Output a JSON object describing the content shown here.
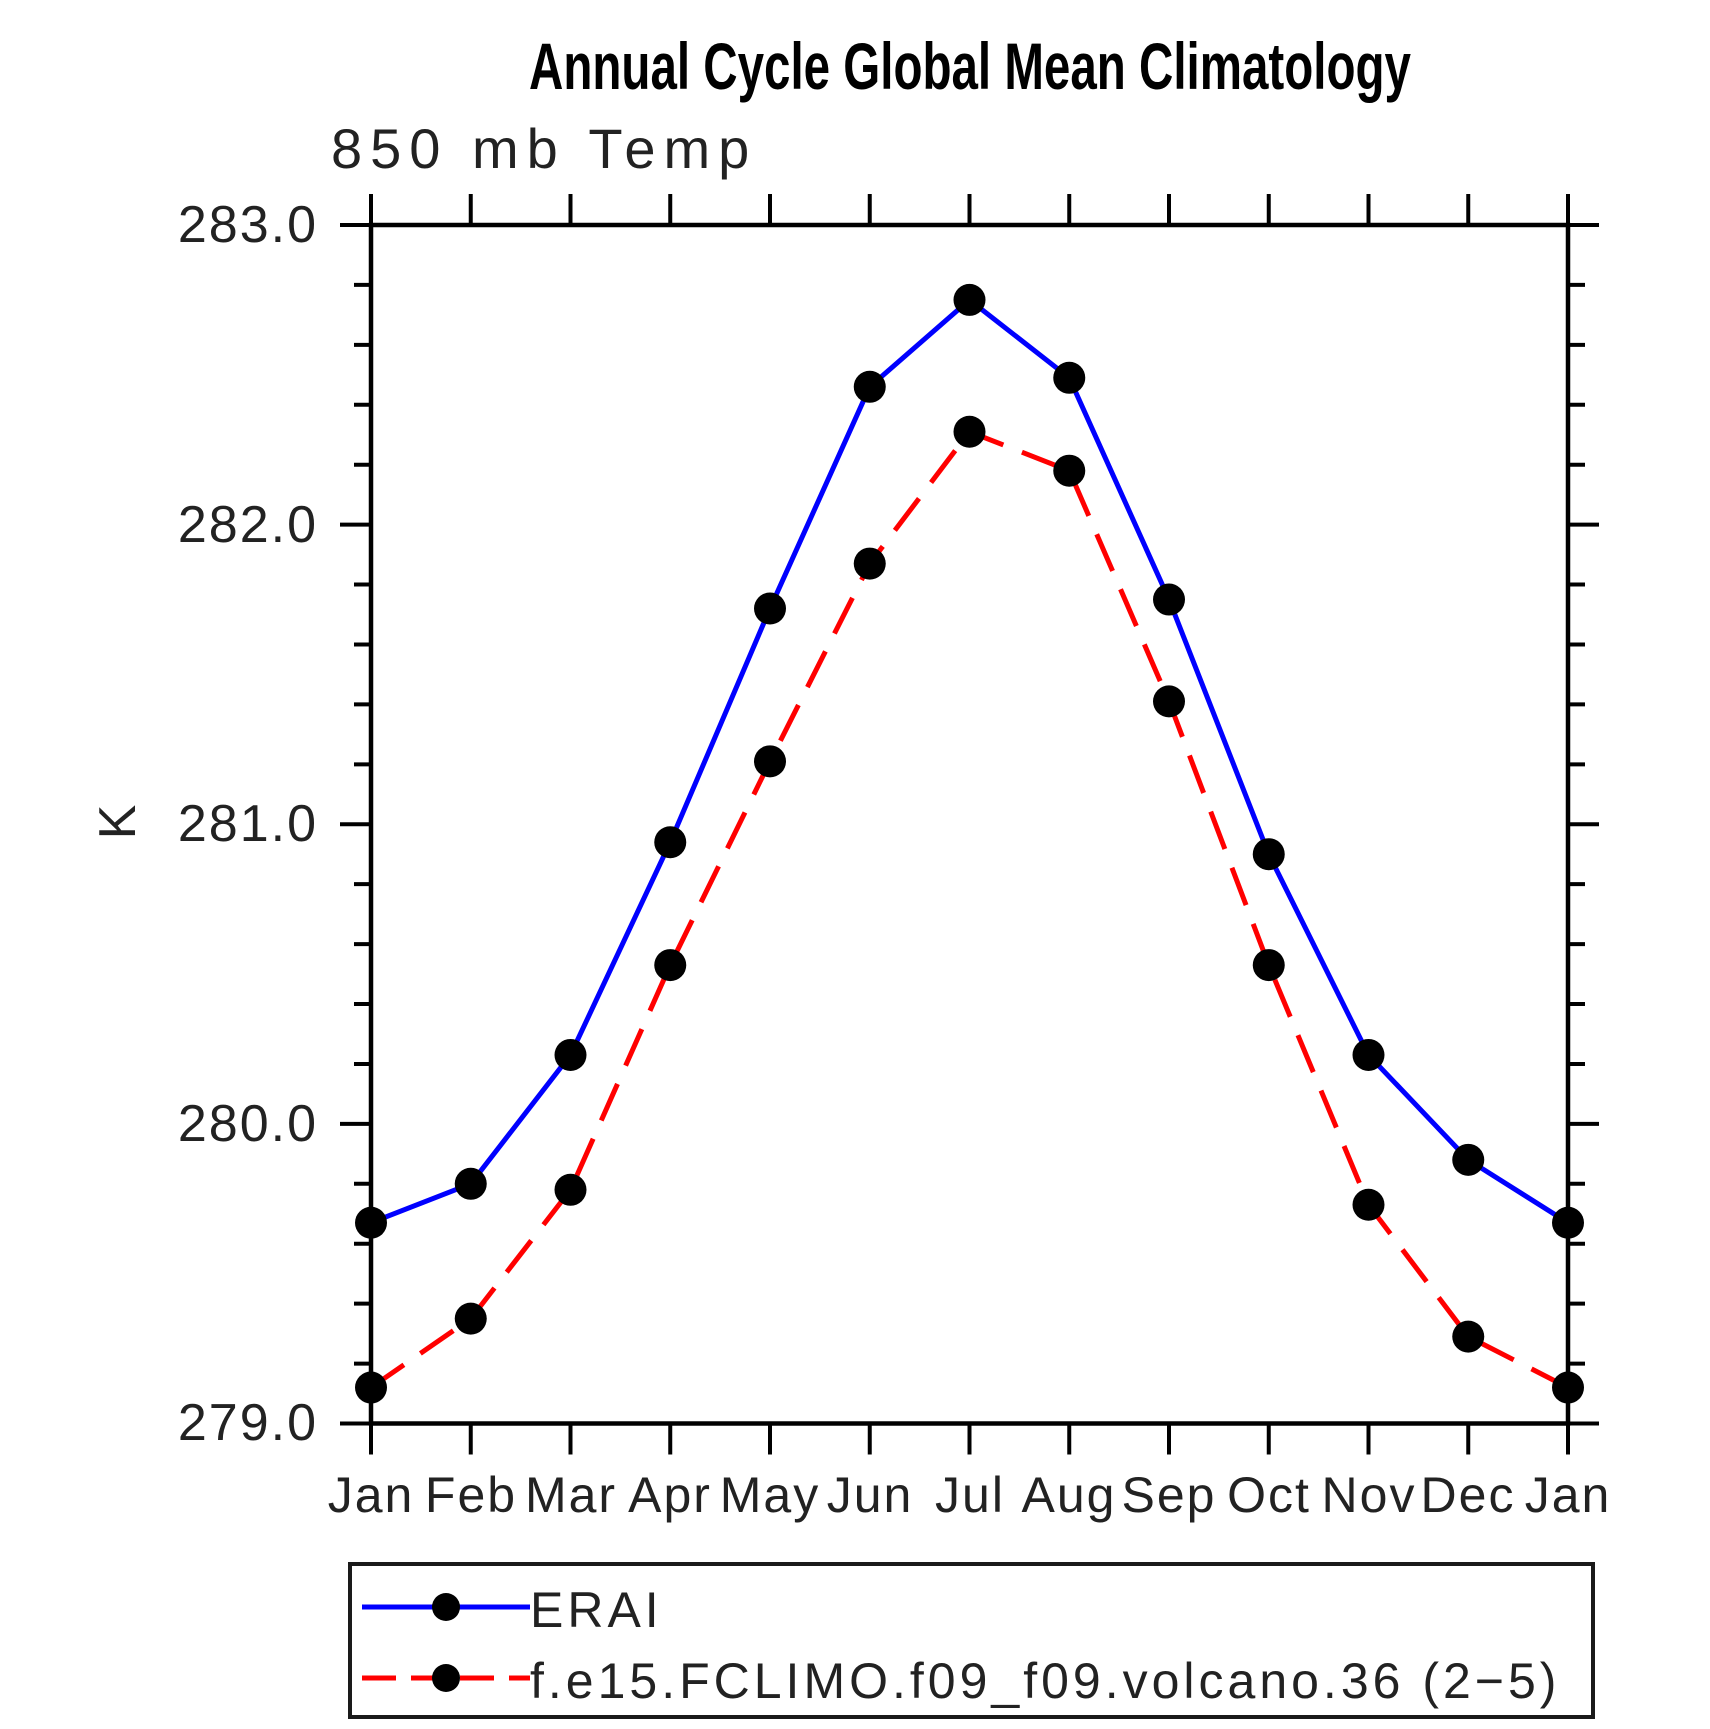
{
  "header": {
    "title": "Annual Cycle Global Mean Climatology",
    "subtitle": "850 mb Temp"
  },
  "chart_data": {
    "type": "line",
    "title": "Annual Cycle Global Mean Climatology",
    "subtitle": "850 mb Temp",
    "ylabel": "K",
    "xlabel": "",
    "ylim": [
      279.0,
      283.0
    ],
    "y_major_step": 1.0,
    "y_minor_step": 0.2,
    "y_tick_labels": [
      "283.0",
      "282.0",
      "281.0",
      "280.0",
      "279.0"
    ],
    "grid": false,
    "legend_position": "bottom-left-box",
    "categories": [
      "Jan",
      "Feb",
      "Mar",
      "Apr",
      "May",
      "Jun",
      "Jul",
      "Aug",
      "Sep",
      "Oct",
      "Nov",
      "Dec",
      "Jan"
    ],
    "series": [
      {
        "name": "ERAI",
        "color": "#0000ff",
        "line_style": "solid",
        "marker": "filled-circle",
        "marker_color": "#000000",
        "values": [
          279.67,
          279.8,
          280.23,
          280.94,
          281.72,
          282.46,
          282.75,
          282.49,
          281.75,
          280.9,
          280.23,
          279.88,
          279.67
        ]
      },
      {
        "name": "f.e15.FCLIMO.f09_f09.volcano.36 (2−5)",
        "color": "#ff0000",
        "line_style": "dashed",
        "marker": "filled-circle",
        "marker_color": "#000000",
        "values": [
          279.12,
          279.35,
          279.78,
          280.53,
          281.21,
          281.87,
          282.31,
          282.18,
          281.41,
          280.53,
          279.73,
          279.29,
          279.12
        ]
      }
    ]
  }
}
